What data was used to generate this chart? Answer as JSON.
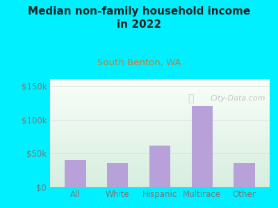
{
  "title": "Median non-family household income\nin 2022",
  "subtitle": "South Benton, WA",
  "categories": [
    "All",
    "White",
    "Hispanic",
    "Multirace",
    "Other"
  ],
  "values": [
    40000,
    36000,
    62000,
    120000,
    36000
  ],
  "bar_color": "#b8a0d8",
  "background_outer": "#00f0ff",
  "background_inner_top": "#d8ede0",
  "background_inner_bottom": "#f8fff8",
  "title_color": "#222222",
  "subtitle_color": "#cc7733",
  "tick_color": "#777777",
  "ylim": [
    0,
    160000
  ],
  "yticks": [
    0,
    50000,
    100000,
    150000
  ],
  "ytick_labels": [
    "$0",
    "$50k",
    "$100k",
    "$150k"
  ],
  "watermark": "City-Data.com",
  "watermark_color": "#bbbbbb"
}
